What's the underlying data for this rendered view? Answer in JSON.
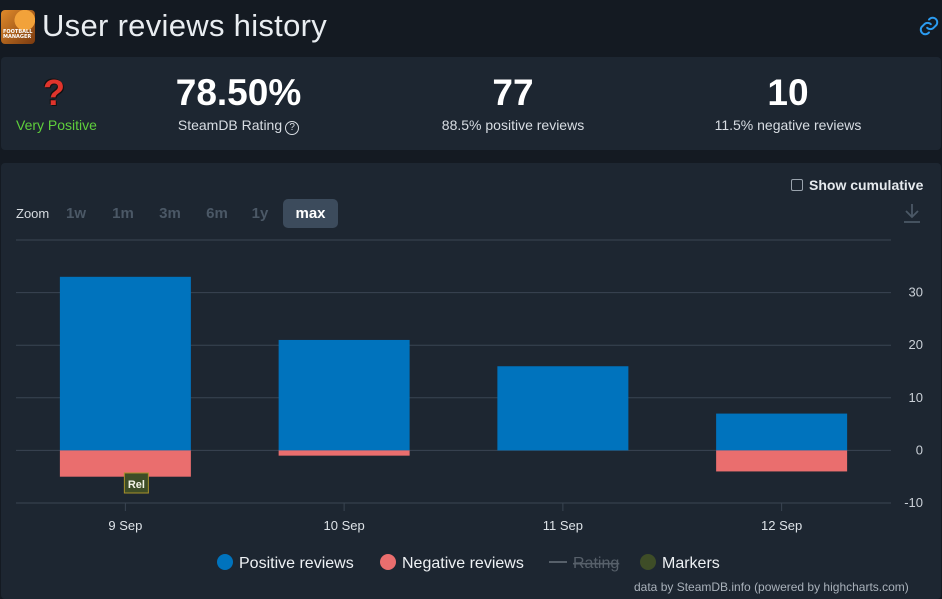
{
  "header": {
    "title": "User reviews history",
    "logo_text": "FOOTBALL MANAGER",
    "link_icon": "link-icon"
  },
  "stats": {
    "rating_word": "Very Positive",
    "rating_icon": "question-mark-icon",
    "rating_value": "78.50%",
    "rating_label": "SteamDB Rating",
    "total_value": "77",
    "total_label": "88.5% positive reviews",
    "negative_value": "10",
    "negative_label": "11.5% negative reviews"
  },
  "controls": {
    "show_cumulative": "Show cumulative",
    "zoom_label": "Zoom",
    "zoom_options": [
      "1w",
      "1m",
      "3m",
      "6m",
      "1y",
      "max"
    ],
    "zoom_selected": "max"
  },
  "colors": {
    "positive": "#0073bd",
    "negative": "#ea6e6e",
    "rating": "#57606a",
    "markers": "#3e4d27",
    "green": "#5fcf3c"
  },
  "chart_data": {
    "type": "bar",
    "categories": [
      "9 Sep",
      "10 Sep",
      "11 Sep",
      "12 Sep"
    ],
    "series": [
      {
        "name": "Positive reviews",
        "values": [
          33,
          21,
          16,
          7
        ]
      },
      {
        "name": "Negative reviews",
        "values": [
          -5,
          -1,
          0,
          -4
        ]
      }
    ],
    "y_ticks": [
      30,
      20,
      10,
      0,
      -10
    ],
    "ylim": [
      -10,
      40
    ],
    "marker": {
      "label": "Rel",
      "category": "9 Sep"
    },
    "legend": [
      {
        "name": "Positive reviews",
        "color": "#0073bd",
        "hidden": false
      },
      {
        "name": "Negative reviews",
        "color": "#ea6e6e",
        "hidden": false
      },
      {
        "name": "Rating",
        "color": "#57606a",
        "hidden": true
      },
      {
        "name": "Markers",
        "color": "#3e4d27",
        "hidden": false
      }
    ],
    "credit": "data by SteamDB.info (powered by highcharts.com)"
  }
}
